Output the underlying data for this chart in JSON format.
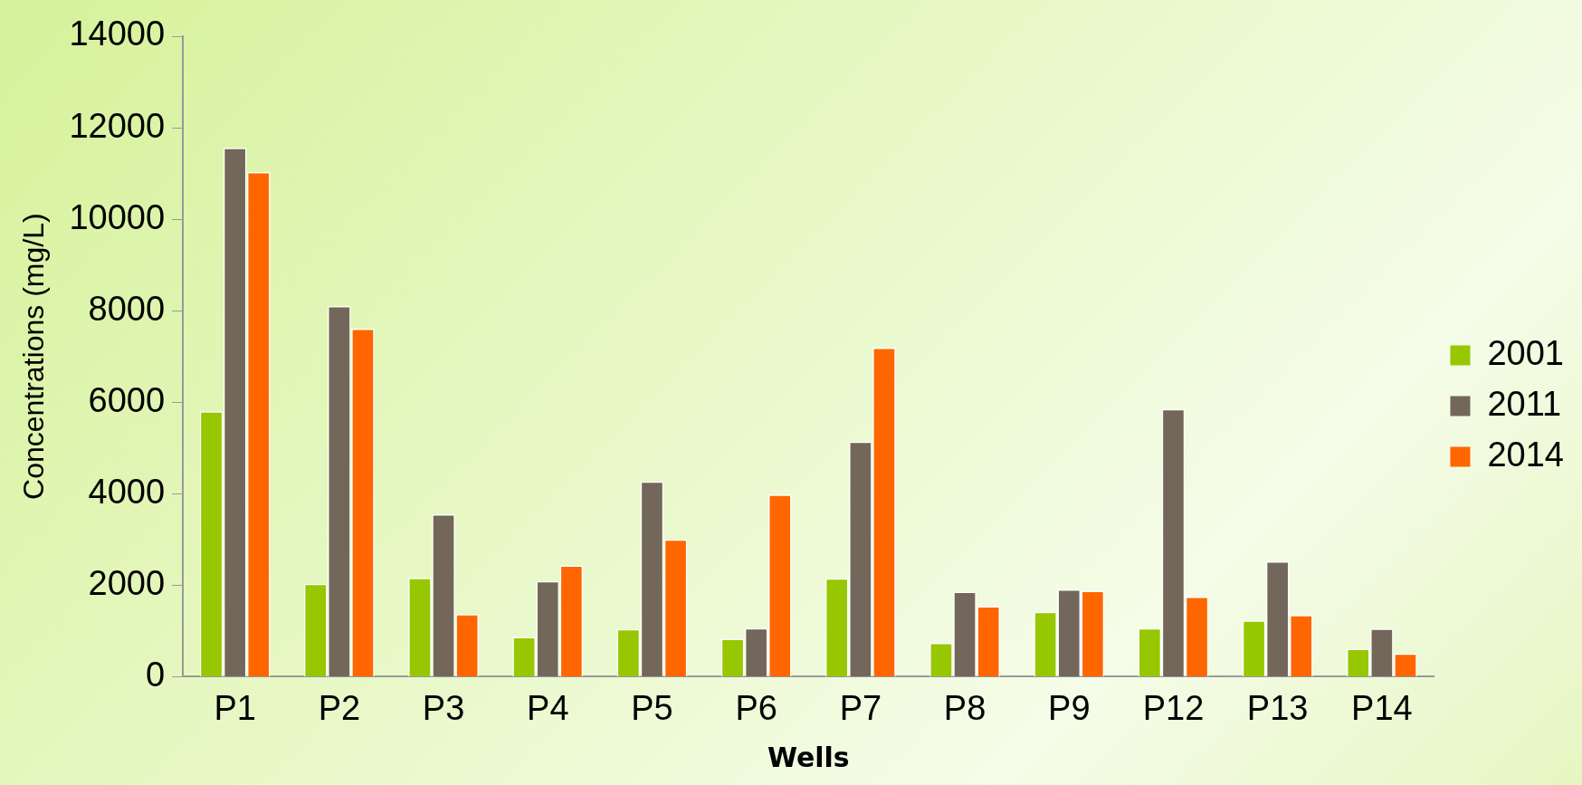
{
  "chart_data": {
    "type": "bar",
    "xlabel": "Wells",
    "ylabel": "Concentrations (mg/L)",
    "categories": [
      "P1",
      "P2",
      "P3",
      "P4",
      "P5",
      "P6",
      "P7",
      "P8",
      "P9",
      "P12",
      "P13",
      "P14"
    ],
    "series": [
      {
        "name": "2001",
        "color": "#96c700",
        "values": [
          5800,
          2030,
          2160,
          870,
          1040,
          830,
          2150,
          740,
          1420,
          1060,
          1230,
          610
        ]
      },
      {
        "name": "2011",
        "color": "#72675a",
        "values": [
          11560,
          8100,
          3550,
          2090,
          4270,
          1060,
          5140,
          1860,
          1910,
          5850,
          2520,
          1050
        ]
      },
      {
        "name": "2014",
        "color": "#ff6600",
        "values": [
          11030,
          7610,
          1370,
          2430,
          3000,
          3980,
          7190,
          1540,
          1880,
          1750,
          1350,
          510
        ]
      }
    ],
    "ylim": [
      0,
      14000
    ],
    "yticks": [
      0,
      2000,
      4000,
      6000,
      8000,
      10000,
      12000,
      14000
    ],
    "grid": false,
    "legend": "right"
  }
}
